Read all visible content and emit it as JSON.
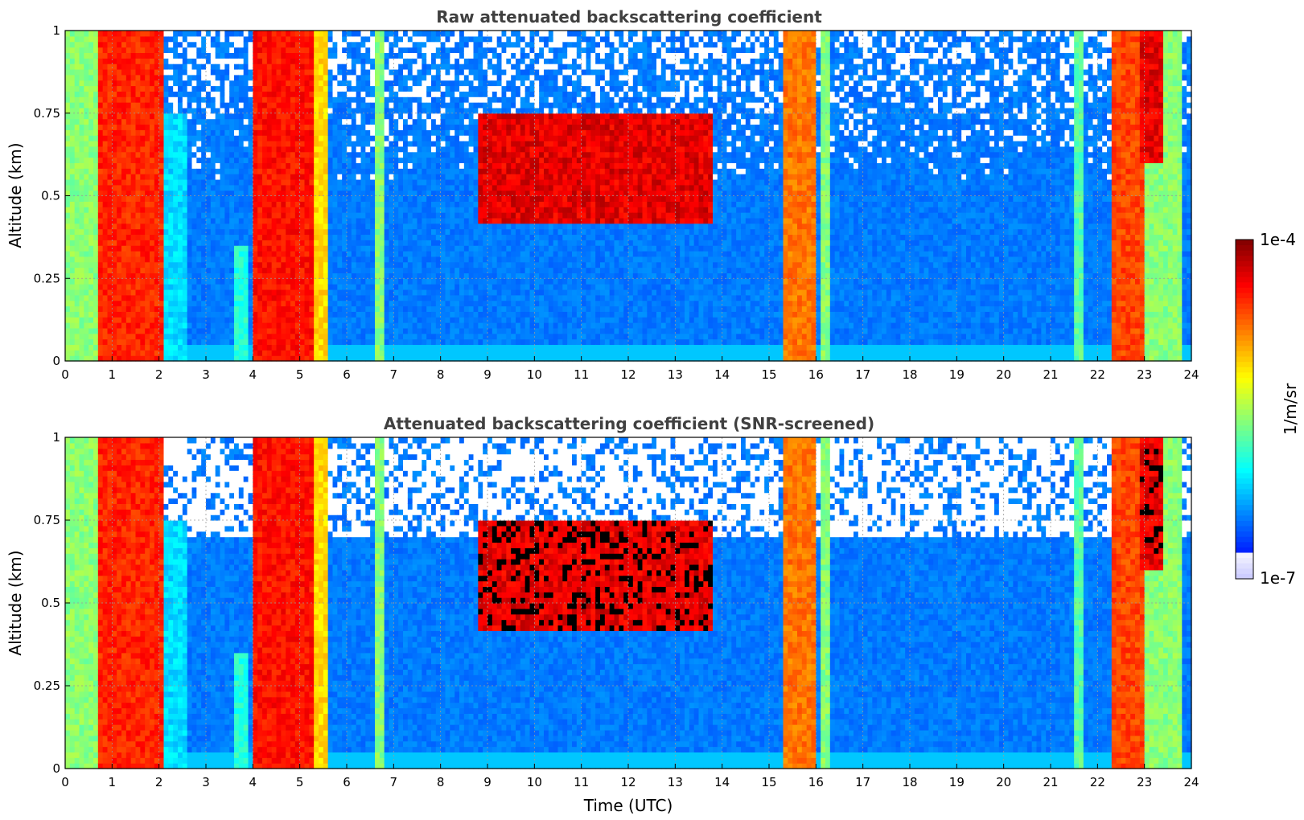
{
  "chart_data": [
    {
      "type": "heatmap",
      "title": "Raw attenuated backscattering coefficient",
      "xlabel": "",
      "ylabel": "Altitude (km)",
      "xlim": [
        0,
        24
      ],
      "ylim": [
        0,
        1
      ],
      "x_ticks": [
        "0",
        "1",
        "2",
        "3",
        "4",
        "5",
        "6",
        "7",
        "8",
        "9",
        "10",
        "11",
        "12",
        "13",
        "14",
        "15",
        "16",
        "17",
        "18",
        "19",
        "20",
        "21",
        "22",
        "23",
        "24"
      ],
      "y_ticks": [
        "0",
        "0.25",
        "0.5",
        "0.75",
        "1"
      ],
      "grid": true,
      "colormap": "jet",
      "screened": false,
      "features": [
        {
          "t": [
            0.0,
            0.7
          ],
          "max_km": 1.0,
          "level": 0.55
        },
        {
          "t": [
            0.7,
            2.1
          ],
          "max_km": 1.0,
          "level": 0.88
        },
        {
          "t": [
            2.1,
            2.6
          ],
          "max_km": 0.75,
          "level": 0.38
        },
        {
          "t": [
            3.6,
            3.9
          ],
          "max_km": 0.35,
          "level": 0.45
        },
        {
          "t": [
            4.0,
            5.3
          ],
          "max_km": 1.0,
          "level": 0.9
        },
        {
          "t": [
            5.3,
            5.6
          ],
          "max_km": 1.0,
          "level": 0.7
        },
        {
          "t": [
            6.6,
            6.8
          ],
          "max_km": 1.0,
          "level": 0.55
        },
        {
          "t": [
            8.8,
            13.8
          ],
          "base_km": 0.42,
          "top_km": 0.75,
          "level": 0.95
        },
        {
          "t": [
            15.3,
            16.0
          ],
          "max_km": 1.0,
          "level": 0.8
        },
        {
          "t": [
            16.1,
            16.3
          ],
          "max_km": 1.0,
          "level": 0.55
        },
        {
          "t": [
            21.5,
            21.7
          ],
          "max_km": 1.0,
          "level": 0.5
        },
        {
          "t": [
            22.3,
            23.0
          ],
          "max_km": 1.0,
          "level": 0.85
        },
        {
          "t": [
            23.0,
            23.8
          ],
          "max_km": 1.0,
          "level": 0.55
        },
        {
          "t": [
            22.9,
            23.4
          ],
          "base_km": 0.6,
          "top_km": 1.0,
          "level": 0.95
        }
      ]
    },
    {
      "type": "heatmap",
      "title": "Attenuated backscattering coefficient (SNR-screened)",
      "xlabel": "Time (UTC)",
      "ylabel": "Altitude (km)",
      "xlim": [
        0,
        24
      ],
      "ylim": [
        0,
        1
      ],
      "x_ticks": [
        "0",
        "1",
        "2",
        "3",
        "4",
        "5",
        "6",
        "7",
        "8",
        "9",
        "10",
        "11",
        "12",
        "13",
        "14",
        "15",
        "16",
        "17",
        "18",
        "19",
        "20",
        "21",
        "22",
        "23",
        "24"
      ],
      "y_ticks": [
        "0",
        "0.25",
        "0.5",
        "0.75",
        "1"
      ],
      "grid": true,
      "colormap": "jet",
      "screened": true,
      "features": [
        {
          "t": [
            0.0,
            0.7
          ],
          "max_km": 1.0,
          "level": 0.55
        },
        {
          "t": [
            0.7,
            2.1
          ],
          "max_km": 1.0,
          "level": 0.88
        },
        {
          "t": [
            2.1,
            2.6
          ],
          "max_km": 0.75,
          "level": 0.38
        },
        {
          "t": [
            3.6,
            3.9
          ],
          "max_km": 0.35,
          "level": 0.45
        },
        {
          "t": [
            4.0,
            5.3
          ],
          "max_km": 1.0,
          "level": 0.9
        },
        {
          "t": [
            5.3,
            5.6
          ],
          "max_km": 1.0,
          "level": 0.7
        },
        {
          "t": [
            6.6,
            6.8
          ],
          "max_km": 1.0,
          "level": 0.55
        },
        {
          "t": [
            8.8,
            13.8
          ],
          "base_km": 0.42,
          "top_km": 0.75,
          "level": 0.95
        },
        {
          "t": [
            15.3,
            16.0
          ],
          "max_km": 1.0,
          "level": 0.8
        },
        {
          "t": [
            16.1,
            16.3
          ],
          "max_km": 1.0,
          "level": 0.55
        },
        {
          "t": [
            21.5,
            21.7
          ],
          "max_km": 1.0,
          "level": 0.5
        },
        {
          "t": [
            22.3,
            23.0
          ],
          "max_km": 1.0,
          "level": 0.85
        },
        {
          "t": [
            23.0,
            23.8
          ],
          "max_km": 1.0,
          "level": 0.55
        },
        {
          "t": [
            22.9,
            23.4
          ],
          "base_km": 0.6,
          "top_km": 1.0,
          "level": 0.95
        }
      ]
    }
  ],
  "colorbar": {
    "min_label": "1e-7",
    "max_label": "1e-4",
    "unit_label": "1/m/sr",
    "min": 1e-07,
    "max": 0.0001,
    "scale": "log"
  }
}
